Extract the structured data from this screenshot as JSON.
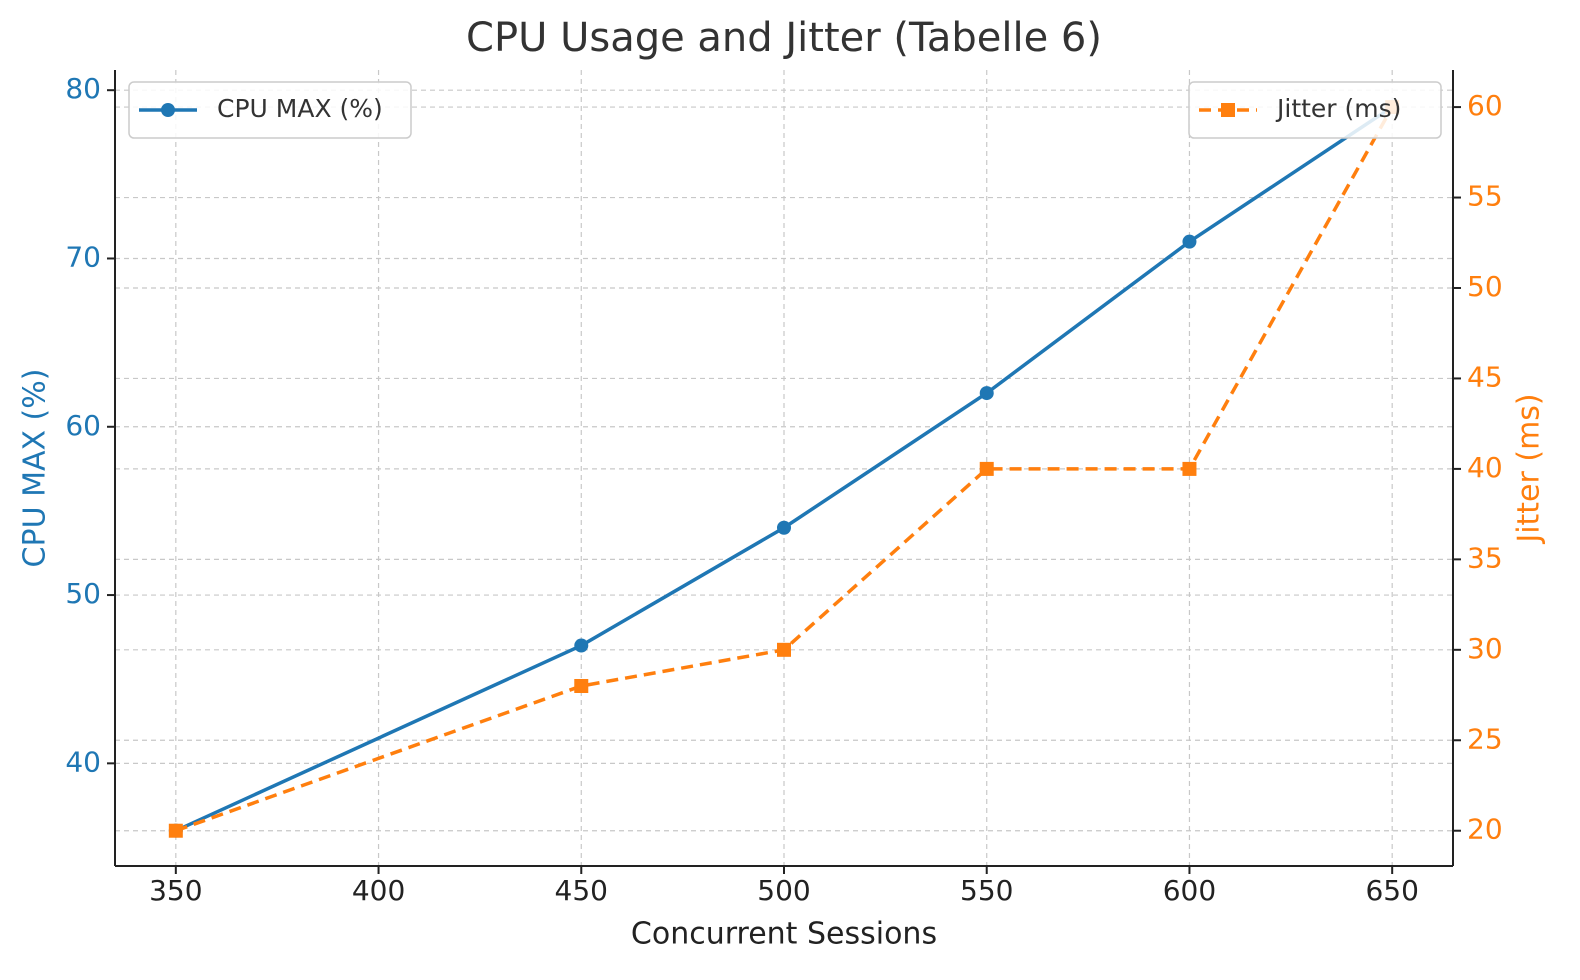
{
  "chart_data": {
    "type": "line",
    "title": "CPU Usage and Jitter (Tabelle 6)",
    "x_label": "Concurrent Sessions",
    "y_label": "CPU MAX (%)",
    "y2_label": "Jitter (ms)",
    "x": [
      350,
      450,
      500,
      550,
      600,
      650
    ],
    "series": [
      {
        "name": "CPU MAX (%)",
        "color": "#1f77b4",
        "marker": "circle",
        "dash": "solid",
        "axis": "y",
        "legend": "upper left",
        "values": [
          36,
          47,
          54,
          62,
          71,
          79
        ]
      },
      {
        "name": "Jitter (ms)",
        "color": "#ff7f0e",
        "marker": "square",
        "dash": "dashed",
        "axis": "y2",
        "legend": "upper right",
        "values": [
          20,
          28,
          30,
          40,
          40,
          60
        ]
      }
    ],
    "xlim": [
      335,
      665
    ],
    "xticks": [
      350,
      400,
      450,
      500,
      550,
      600,
      650
    ],
    "ylim": [
      33.9,
      81.2
    ],
    "yticks": [
      40,
      50,
      60,
      70,
      80
    ],
    "y2lim": [
      18.05,
      62.05
    ],
    "y2ticks": [
      20,
      25,
      30,
      35,
      40,
      45,
      50,
      55,
      60
    ],
    "grid": true
  }
}
